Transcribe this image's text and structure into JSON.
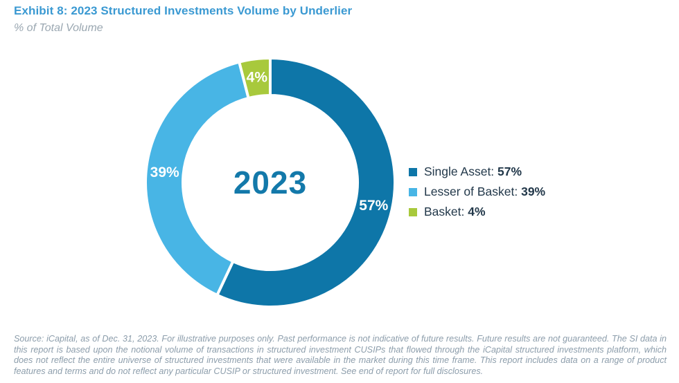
{
  "header": {
    "title": "Exhibit 8: 2023 Structured Investments Volume by Underlier",
    "subtitle": "% of Total Volume"
  },
  "chart_data": {
    "type": "pie",
    "donut": true,
    "title": "2023 Structured Investments Volume by Underlier (% of Total Volume)",
    "center_label": "2023",
    "start_angle_deg": 0,
    "direction": "clockwise",
    "legend_position": "right",
    "series": [
      {
        "name": "Single Asset",
        "value": 57,
        "color": "#0e76a8"
      },
      {
        "name": "Lesser of Basket",
        "value": 39,
        "color": "#48b5e5"
      },
      {
        "name": "Basket",
        "value": 4,
        "color": "#a8c93c"
      }
    ]
  },
  "legend": {
    "items": [
      {
        "label": "Single Asset:",
        "value": "57%",
        "color": "#0e76a8"
      },
      {
        "label": "Lesser of Basket:",
        "value": "39%",
        "color": "#48b5e5"
      },
      {
        "label": "Basket:",
        "value": "4%",
        "color": "#a8c93c"
      }
    ]
  },
  "colors": {
    "title_blue": "#3a99d2",
    "center_label_blue": "#1379aa",
    "legend_text": "#22384a",
    "footer_gray": "#8c9dab"
  },
  "footer": {
    "text": "Source: iCapital, as of Dec. 31, 2023. For illustrative purposes only. Past performance is not indicative of future results. Future results are not guaranteed. The SI data in this report is based upon the notional volume of transactions in structured investment CUSIPs that flowed through the iCapital structured investments platform, which does not reflect the entire universe of structured investments that were available in the market during this time frame. This report includes data on a range of product features and terms and do not reflect any particular CUSIP or structured investment. See end of report for full disclosures."
  }
}
